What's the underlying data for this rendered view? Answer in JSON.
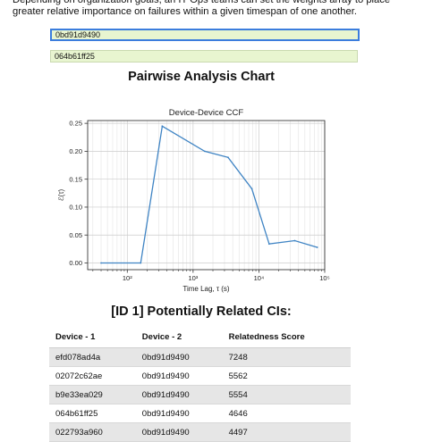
{
  "intro": {
    "text": "Depending on organization goals, an IT Ops teams can set the weights array to place greater relative importance on failures within a given timespan of one another."
  },
  "inputs": {
    "device_1": "0bd91d9490",
    "device_2": "064b61ff25"
  },
  "chart_section": {
    "heading": "Pairwise Analysis Chart"
  },
  "chart_data": {
    "type": "line",
    "title": "Device-Device CCF",
    "xlabel": "Time Lag, τ (s)",
    "ylabel": "ℰ(τ)",
    "xscale": "log",
    "xlim": [
      25,
      100000
    ],
    "ylim": [
      -0.012,
      0.255
    ],
    "grid": true,
    "xticks": [
      {
        "value": 100,
        "label": "10²"
      },
      {
        "value": 1000,
        "label": "10³"
      },
      {
        "value": 10000,
        "label": "10⁴"
      },
      {
        "value": 100000,
        "label": "10⁵"
      }
    ],
    "yticks": [
      0.0,
      0.05,
      0.1,
      0.15,
      0.2,
      0.25
    ],
    "ytick_labels": [
      "0.00",
      "0.05",
      "0.10",
      "0.15",
      "0.20",
      "0.25"
    ],
    "series": [
      {
        "color": "#3f84c4",
        "x": [
          40,
          160,
          340,
          1500,
          3400,
          7800,
          14300,
          35000,
          77000
        ],
        "y": [
          0.0,
          0.0,
          0.245,
          0.2,
          0.189,
          0.133,
          0.034,
          0.04,
          0.028
        ]
      }
    ]
  },
  "related_section": {
    "heading": "[ID 1] Potentially Related CIs:"
  },
  "related_table": {
    "headers": [
      "Device - 1",
      "Device - 2",
      "Relatedness Score"
    ],
    "rows": [
      [
        "efd078ad4a",
        "0bd91d9490",
        "7248"
      ],
      [
        "02072c62ae",
        "0bd91d9490",
        "5562"
      ],
      [
        "b9e33ea029",
        "0bd91d9490",
        "5554"
      ],
      [
        "064b61ff25",
        "0bd91d9490",
        "4646"
      ],
      [
        "022793a960",
        "0bd91d9490",
        "4497"
      ]
    ]
  }
}
